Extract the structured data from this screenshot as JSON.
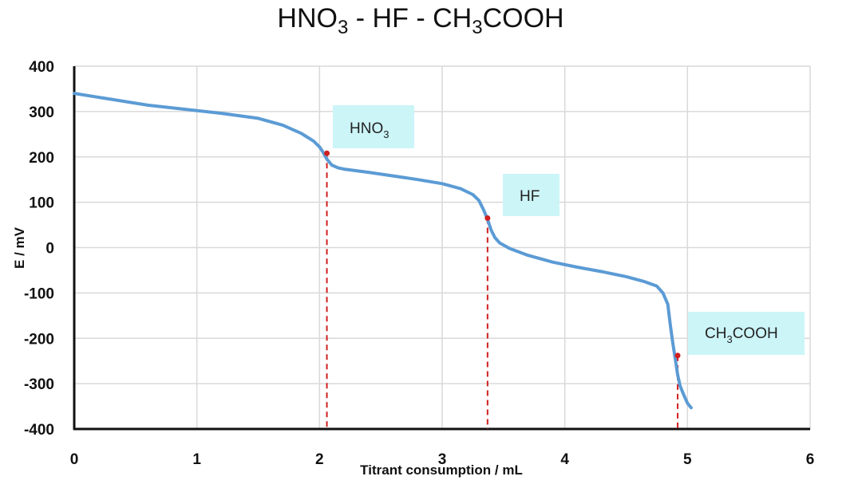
{
  "chart_data": {
    "type": "line",
    "title": {
      "base1": "HNO",
      "sub1": "3",
      "base2": " - HF - CH",
      "sub2": "3",
      "base3": "COOH"
    },
    "xlabel": "Titrant consumption / mL",
    "ylabel": "E / mV",
    "xlim": [
      0,
      6
    ],
    "ylim": [
      -400,
      400
    ],
    "x_ticks": [
      0,
      1,
      2,
      3,
      4,
      5,
      6
    ],
    "y_ticks": [
      400,
      300,
      200,
      100,
      0,
      -100,
      -200,
      -300,
      -400
    ],
    "grid": true,
    "series": [
      {
        "name": "titration curve",
        "color": "#5b9bd5",
        "x": [
          0,
          0.3,
          0.6,
          0.9,
          1.2,
          1.5,
          1.7,
          1.85,
          1.95,
          2.0,
          2.03,
          2.06,
          2.1,
          2.15,
          2.2,
          2.4,
          2.6,
          2.8,
          3.0,
          3.15,
          3.25,
          3.3,
          3.34,
          3.37,
          3.4,
          3.43,
          3.47,
          3.55,
          3.7,
          3.9,
          4.1,
          4.3,
          4.5,
          4.65,
          4.75,
          4.8,
          4.84,
          4.86,
          4.88,
          4.9,
          4.92,
          4.94,
          4.97,
          5.0,
          5.03
        ],
        "y": [
          340,
          327,
          314,
          305,
          296,
          285,
          270,
          252,
          235,
          222,
          210,
          195,
          182,
          176,
          173,
          166,
          158,
          150,
          141,
          130,
          117,
          104,
          82,
          62,
          38,
          22,
          10,
          -2,
          -17,
          -32,
          -43,
          -53,
          -64,
          -75,
          -85,
          -100,
          -125,
          -170,
          -210,
          -245,
          -280,
          -305,
          -325,
          -343,
          -353
        ]
      }
    ],
    "equivalence_points": [
      {
        "x": 2.06,
        "y": 208,
        "color": "#d02020"
      },
      {
        "x": 3.37,
        "y": 65,
        "color": "#d02020"
      },
      {
        "x": 4.92,
        "y": -238,
        "color": "#d02020"
      }
    ],
    "annotations": [
      {
        "base": "HNO",
        "sub": "3",
        "tail": "",
        "fill": "#ccf5f8"
      },
      {
        "base": "HF",
        "sub": "",
        "tail": "",
        "fill": "#ccf5f8"
      },
      {
        "base": "CH",
        "sub": "3",
        "tail": "COOH",
        "fill": "#ccf5f8"
      }
    ]
  }
}
